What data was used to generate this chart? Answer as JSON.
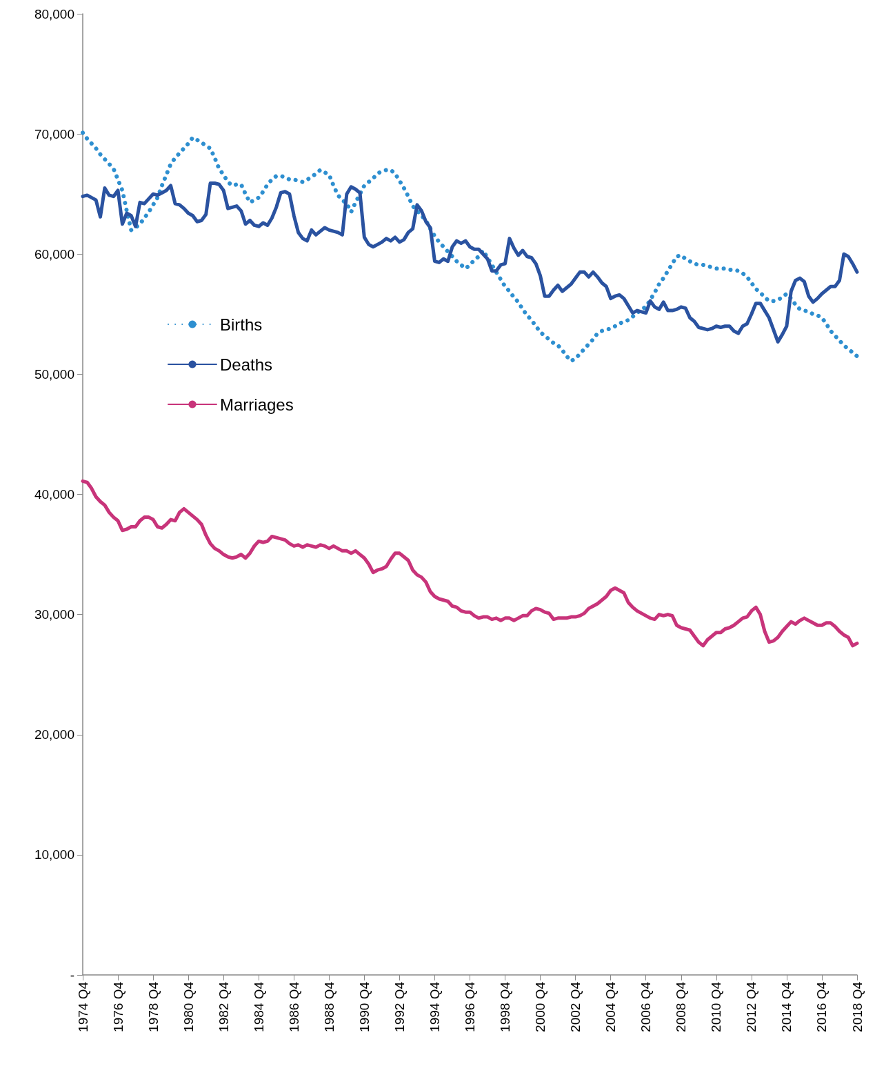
{
  "chart_data": {
    "type": "line",
    "categories": [
      "1974 Q4",
      null,
      null,
      null,
      null,
      null,
      null,
      null,
      "1976 Q4",
      null,
      null,
      null,
      null,
      null,
      null,
      null,
      "1978 Q4",
      null,
      null,
      null,
      null,
      null,
      null,
      null,
      "1980 Q4",
      null,
      null,
      null,
      null,
      null,
      null,
      null,
      "1982 Q4",
      null,
      null,
      null,
      null,
      null,
      null,
      null,
      "1984 Q4",
      null,
      null,
      null,
      null,
      null,
      null,
      null,
      "1986 Q4",
      null,
      null,
      null,
      null,
      null,
      null,
      null,
      "1988 Q4",
      null,
      null,
      null,
      null,
      null,
      null,
      null,
      "1990 Q4",
      null,
      null,
      null,
      null,
      null,
      null,
      null,
      "1992 Q4",
      null,
      null,
      null,
      null,
      null,
      null,
      null,
      "1994 Q4",
      null,
      null,
      null,
      null,
      null,
      null,
      null,
      "1996 Q4",
      null,
      null,
      null,
      null,
      null,
      null,
      null,
      "1998 Q4",
      null,
      null,
      null,
      null,
      null,
      null,
      null,
      "2000 Q4",
      null,
      null,
      null,
      null,
      null,
      null,
      null,
      "2002 Q4",
      null,
      null,
      null,
      null,
      null,
      null,
      null,
      "2004 Q4",
      null,
      null,
      null,
      null,
      null,
      null,
      null,
      "2006 Q4",
      null,
      null,
      null,
      null,
      null,
      null,
      null,
      "2008 Q4",
      null,
      null,
      null,
      null,
      null,
      null,
      null,
      "2010 Q4",
      null,
      null,
      null,
      null,
      null,
      null,
      null,
      "2012 Q4",
      null,
      null,
      null,
      null,
      null,
      null,
      null,
      "2014 Q4",
      null,
      null,
      null,
      null,
      null,
      null,
      null,
      "2016 Q4",
      null,
      null,
      null,
      null,
      null,
      null,
      null,
      "2018 Q4"
    ],
    "series": [
      {
        "name": "Births",
        "color": "#2e8fd0",
        "line_style": "dotted",
        "values": [
          70100,
          69600,
          69200,
          68800,
          68300,
          67900,
          67500,
          67100,
          66200,
          65300,
          63600,
          62000,
          62200,
          62500,
          63000,
          63500,
          64100,
          64700,
          65700,
          66600,
          67500,
          68000,
          68400,
          68800,
          69200,
          69700,
          69500,
          69300,
          69000,
          68800,
          68000,
          67100,
          66600,
          66000,
          65700,
          65800,
          65800,
          65000,
          64300,
          64500,
          64700,
          65200,
          65800,
          66200,
          66500,
          66500,
          66400,
          66200,
          66200,
          66100,
          66000,
          66200,
          66400,
          66700,
          67000,
          66800,
          66600,
          65700,
          64900,
          64500,
          64200,
          63500,
          64300,
          65000,
          65700,
          66000,
          66300,
          66700,
          66900,
          67000,
          67000,
          66700,
          66100,
          65500,
          64800,
          64000,
          63600,
          63200,
          62800,
          62100,
          61500,
          61000,
          60600,
          60200,
          59800,
          59400,
          59100,
          58800,
          59100,
          59500,
          59800,
          60300,
          59700,
          59100,
          58500,
          57900,
          57300,
          56900,
          56400,
          56000,
          55400,
          54900,
          54500,
          54000,
          53500,
          53200,
          52900,
          52600,
          52400,
          52000,
          51500,
          51100,
          51300,
          51700,
          52100,
          52500,
          52900,
          53400,
          53600,
          53700,
          53800,
          54000,
          54200,
          54400,
          54500,
          54800,
          55100,
          55400,
          55600,
          56200,
          56800,
          57500,
          58000,
          58600,
          59200,
          59800,
          59900,
          59600,
          59400,
          59200,
          59100,
          59100,
          59000,
          58900,
          58800,
          58800,
          58800,
          58700,
          58700,
          58600,
          58400,
          58100,
          57600,
          57100,
          56800,
          56400,
          56100,
          56100,
          56200,
          56400,
          56700,
          56300,
          55800,
          55400,
          55300,
          55200,
          55000,
          54900,
          54700,
          54200,
          53600,
          53200,
          52800,
          52400,
          52100,
          51800,
          51500
        ]
      },
      {
        "name": "Deaths",
        "color": "#2a52a0",
        "line_style": "solid",
        "values": [
          64800,
          64900,
          64700,
          64500,
          63100,
          65500,
          64900,
          64800,
          65300,
          62500,
          63400,
          63200,
          62300,
          64300,
          64200,
          64600,
          65000,
          64900,
          65100,
          65300,
          65700,
          64200,
          64100,
          63800,
          63400,
          63200,
          62700,
          62800,
          63300,
          65900,
          65900,
          65800,
          65300,
          63800,
          63900,
          64000,
          63600,
          62500,
          62800,
          62400,
          62300,
          62600,
          62400,
          63000,
          63900,
          65100,
          65200,
          65000,
          63200,
          61800,
          61300,
          61100,
          62000,
          61600,
          61900,
          62200,
          62000,
          61900,
          61800,
          61600,
          65000,
          65600,
          65400,
          65100,
          61400,
          60800,
          60600,
          60800,
          61000,
          61300,
          61100,
          61400,
          61000,
          61200,
          61800,
          62100,
          64100,
          63600,
          62700,
          62200,
          59400,
          59300,
          59600,
          59400,
          60600,
          61100,
          60900,
          61100,
          60600,
          60400,
          60400,
          60000,
          59600,
          58600,
          58600,
          59100,
          59200,
          61300,
          60500,
          59900,
          60300,
          59800,
          59700,
          59200,
          58200,
          56500,
          56500,
          57000,
          57400,
          56900,
          57200,
          57500,
          58000,
          58500,
          58500,
          58100,
          58500,
          58100,
          57600,
          57300,
          56300,
          56500,
          56600,
          56300,
          55700,
          55100,
          55300,
          55200,
          55100,
          56100,
          55600,
          55400,
          56000,
          55300,
          55300,
          55400,
          55600,
          55500,
          54700,
          54400,
          53900,
          53800,
          53700,
          53800,
          54000,
          53900,
          54000,
          54000,
          53600,
          53400,
          54000,
          54200,
          55000,
          55900,
          55900,
          55300,
          54700,
          53700,
          52700,
          53300,
          54000,
          56900,
          57800,
          58000,
          57700,
          56500,
          56000,
          56300,
          56700,
          57000,
          57300,
          57300,
          57800,
          60000,
          59800,
          59200,
          58500
        ]
      },
      {
        "name": "Marriages",
        "color": "#c8347a",
        "line_style": "solid",
        "values": [
          41100,
          41000,
          40500,
          39800,
          39400,
          39100,
          38500,
          38100,
          37800,
          37000,
          37100,
          37300,
          37300,
          37800,
          38100,
          38100,
          37900,
          37300,
          37200,
          37500,
          37900,
          37800,
          38500,
          38800,
          38500,
          38200,
          37900,
          37500,
          36600,
          35900,
          35500,
          35300,
          35000,
          34800,
          34700,
          34800,
          35000,
          34700,
          35100,
          35700,
          36100,
          36000,
          36100,
          36500,
          36400,
          36300,
          36200,
          35900,
          35700,
          35800,
          35600,
          35800,
          35700,
          35600,
          35800,
          35700,
          35500,
          35700,
          35500,
          35300,
          35300,
          35100,
          35300,
          35000,
          34700,
          34200,
          33500,
          33700,
          33800,
          34000,
          34600,
          35100,
          35100,
          34800,
          34500,
          33700,
          33300,
          33100,
          32700,
          31900,
          31500,
          31300,
          31200,
          31100,
          30700,
          30600,
          30300,
          30200,
          30200,
          29900,
          29700,
          29800,
          29800,
          29600,
          29700,
          29500,
          29700,
          29700,
          29500,
          29700,
          29900,
          29900,
          30300,
          30500,
          30400,
          30200,
          30100,
          29600,
          29700,
          29700,
          29700,
          29800,
          29800,
          29900,
          30100,
          30500,
          30700,
          30900,
          31200,
          31500,
          32000,
          32200,
          32000,
          31800,
          31000,
          30600,
          30300,
          30100,
          29900,
          29700,
          29600,
          30000,
          29900,
          30000,
          29900,
          29100,
          28900,
          28800,
          28700,
          28200,
          27700,
          27400,
          27900,
          28200,
          28500,
          28500,
          28800,
          28900,
          29100,
          29400,
          29700,
          29800,
          30300,
          30600,
          30000,
          28600,
          27700,
          27800,
          28100,
          28600,
          29000,
          29400,
          29200,
          29500,
          29700,
          29500,
          29300,
          29100,
          29100,
          29300,
          29300,
          29000,
          28600,
          28300,
          28100,
          27400,
          27600
        ]
      }
    ],
    "ylim": [
      0,
      80000
    ],
    "yticks": [
      {
        "value": 0,
        "label": "-"
      },
      {
        "value": 10000,
        "label": "10,000"
      },
      {
        "value": 20000,
        "label": "20,000"
      },
      {
        "value": 30000,
        "label": "30,000"
      },
      {
        "value": 40000,
        "label": "40,000"
      },
      {
        "value": 50000,
        "label": "50,000"
      },
      {
        "value": 60000,
        "label": "60,000"
      },
      {
        "value": 70000,
        "label": "70,000"
      },
      {
        "value": 80000,
        "label": "80,000"
      }
    ],
    "grid": false,
    "legend": "left",
    "marker": "none"
  }
}
